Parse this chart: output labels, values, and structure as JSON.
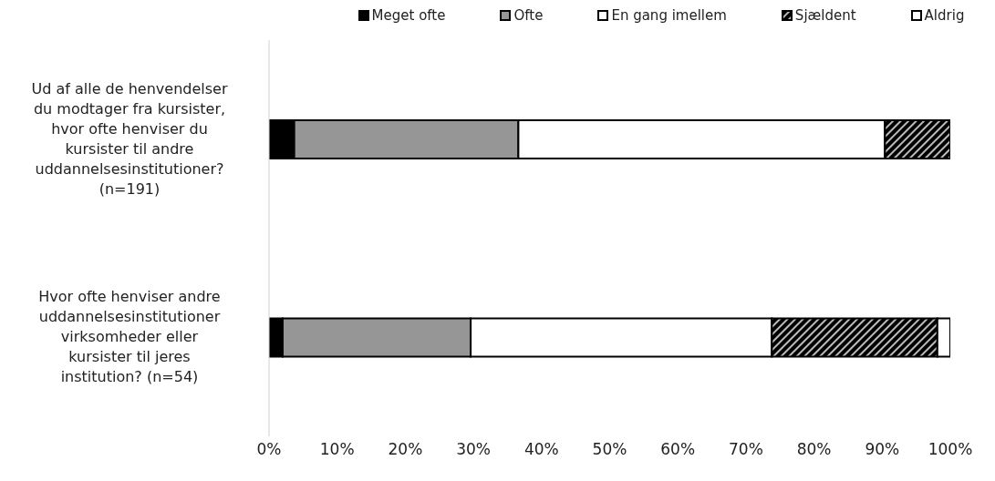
{
  "chart_data": {
    "type": "bar",
    "orientation": "horizontal",
    "stacked": true,
    "categories": [
      "Ud af alle de henvendelser du modtager fra kursister, hvor ofte henviser du kursister til andre uddannelsesinstitutioner? (n=191)",
      "Hvor ofte henviser andre uddannelsesinstitutioner virksomheder eller kursister til jeres institution? (n=54)"
    ],
    "series": [
      {
        "name": "Meget ofte",
        "color": "#000000",
        "values": [
          3.7,
          2.0
        ]
      },
      {
        "name": "Ofte",
        "color": "#969696",
        "values": [
          32.9,
          27.6
        ]
      },
      {
        "name": "En gang imellem",
        "color": "#ffffff",
        "values": [
          53.8,
          44.2
        ]
      },
      {
        "name": "Sjældent",
        "color": "#000000",
        "values": [
          9.6,
          24.3
        ]
      },
      {
        "name": "Aldrig",
        "color": "#ffffff",
        "values": [
          0,
          1.9
        ]
      }
    ],
    "xlim": [
      0,
      100
    ],
    "xticks": [
      {
        "value": 0,
        "label": "0%"
      },
      {
        "value": 10,
        "label": "10%"
      },
      {
        "value": 20,
        "label": "20%"
      },
      {
        "value": 30,
        "label": "30%"
      },
      {
        "value": 40,
        "label": "40%"
      },
      {
        "value": 50,
        "label": "50%"
      },
      {
        "value": 60,
        "label": "60%"
      },
      {
        "value": 70,
        "label": "70%"
      },
      {
        "value": 80,
        "label": "80%"
      },
      {
        "value": 90,
        "label": "90%"
      },
      {
        "value": 100,
        "label": "100%"
      }
    ],
    "grid": false,
    "legend": "top"
  }
}
